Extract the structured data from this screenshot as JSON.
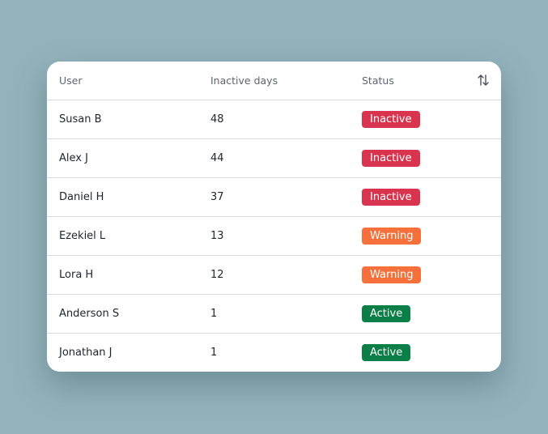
{
  "table": {
    "header": [
      "User",
      "Inactive days",
      "Status"
    ],
    "rows": [
      {
        "user": "Susan B",
        "days": 48,
        "status": {
          "label": "Inactive",
          "color": "#d8344f"
        }
      },
      {
        "user": "Alex J",
        "days": 44,
        "status": {
          "label": "Inactive",
          "color": "#d8344f"
        }
      },
      {
        "user": "Daniel H",
        "days": 37,
        "status": {
          "label": "Inactive",
          "color": "#d8344f"
        }
      },
      {
        "user": "Ezekiel L",
        "days": 13,
        "status": {
          "label": "Warning",
          "color": "#f5703a"
        }
      },
      {
        "user": "Lora H",
        "days": 12,
        "status": {
          "label": "Warning",
          "color": "#f5703a"
        }
      },
      {
        "user": "Anderson S",
        "days": 1,
        "status": {
          "label": "Active",
          "color": "#0b7f47"
        }
      },
      {
        "user": "Jonathan J",
        "days": 1,
        "status": {
          "label": "Active",
          "color": "#0b7f47"
        }
      }
    ]
  }
}
